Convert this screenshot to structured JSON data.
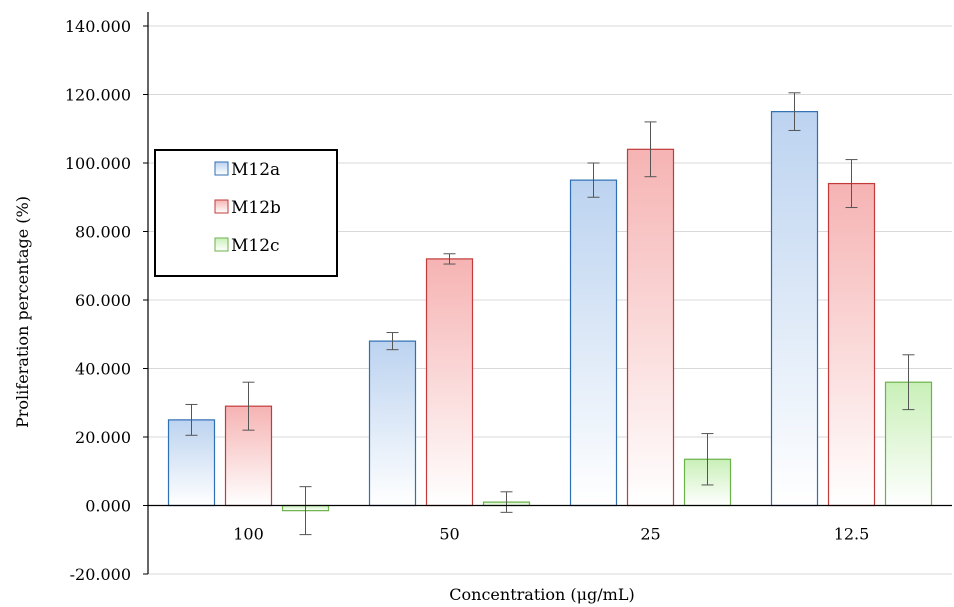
{
  "chart_data": {
    "type": "bar",
    "categories": [
      "100",
      "50",
      "25",
      "12.5"
    ],
    "series": [
      {
        "name": "M12a",
        "values": [
          25.0,
          48.0,
          95.0,
          115.0
        ],
        "errors": [
          4.5,
          2.5,
          5.0,
          5.5
        ],
        "color": "#bcd3f0",
        "stroke": "#2f6fb3"
      },
      {
        "name": "M12b",
        "values": [
          29.0,
          72.0,
          104.0,
          94.0
        ],
        "errors": [
          7.0,
          1.5,
          8.0,
          7.0
        ],
        "color": "#f6b3b3",
        "stroke": "#c23b3b"
      },
      {
        "name": "M12c",
        "values": [
          -1.5,
          1.0,
          13.5,
          36.0
        ],
        "errors": [
          7.0,
          3.0,
          7.5,
          8.0
        ],
        "color": "#c9f0b8",
        "stroke": "#6bb24a"
      }
    ],
    "y_ticks": [
      "140.000",
      "120.000",
      "100.000",
      "80.000",
      "60.000",
      "40.000",
      "20.000",
      "0.000",
      "-20.000"
    ],
    "ylim": [
      -20,
      140
    ],
    "xlabel": "Concentration (μg/mL)",
    "ylabel": "Proliferation percentage (%)",
    "grid": true,
    "legend_position": "left"
  }
}
